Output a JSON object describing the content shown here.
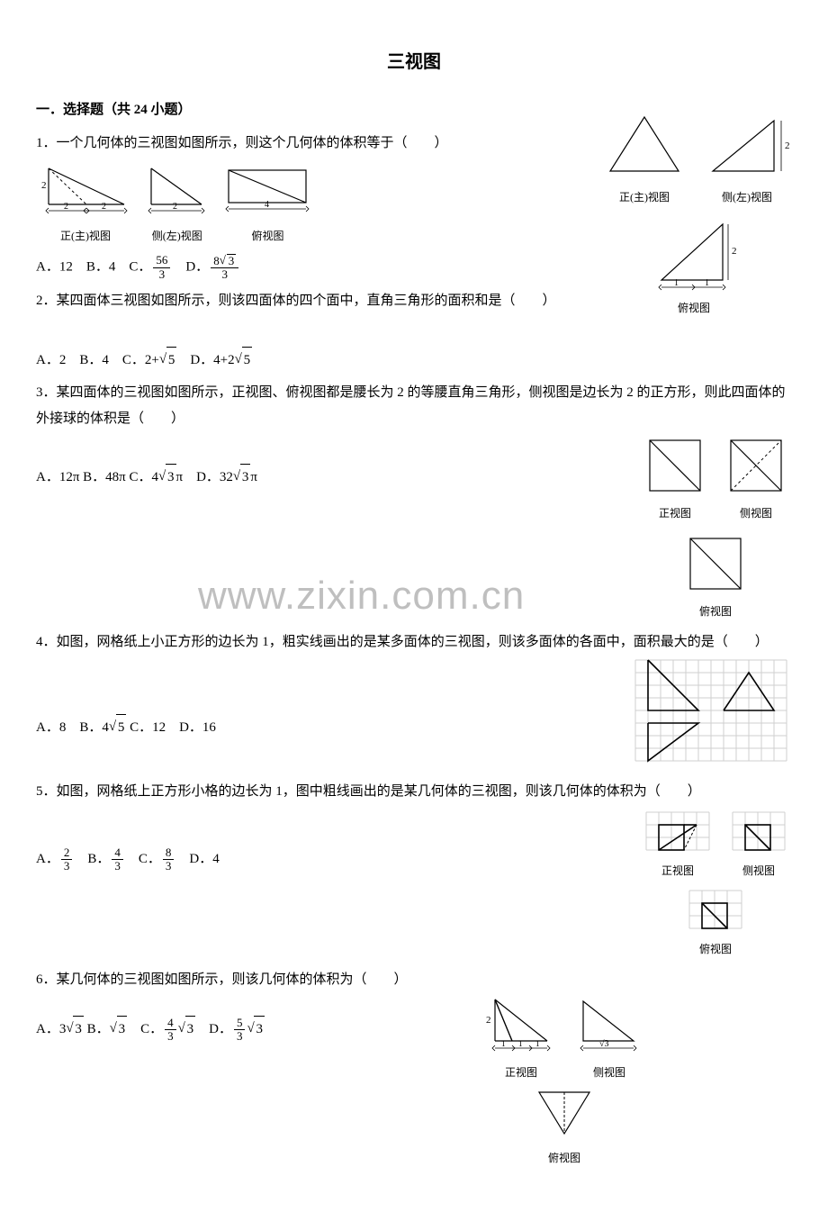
{
  "title": "三视图",
  "section_heading": "一．选择题（共 24 小题）",
  "watermark": "www.zixin.com.cn",
  "view_labels": {
    "front": "正(主)视图",
    "side": "侧(左)视图",
    "top": "俯视图",
    "front_short": "正视图",
    "side_short": "侧视图",
    "top_short": "俯视图",
    "front_tiny": "正视图",
    "side_tiny": "侧视图"
  },
  "questions": [
    {
      "num": "1",
      "text": "．一个几何体的三视图如图所示，则这个几何体的体积等于（　　）",
      "options_html": "A．12　B．4　C．<span class='frac'><span class='num'>56</span><span class='den'>3</span></span>　D．<span class='frac'><span class='num'>8<span class='sqrt'><span class='radicand'>3</span></span></span><span class='den'>3</span></span>"
    },
    {
      "num": "2",
      "text": "．某四面体三视图如图所示，则该四面体的四个面中，直角三角形的面积和是（　　）",
      "options_html": "A．2　B．4　C．2+<span class='sqrt'><span class='radicand'>5</span></span>　D．4+2<span class='sqrt'><span class='radicand'>5</span></span>"
    },
    {
      "num": "3",
      "text": "．某四面体的三视图如图所示，正视图、俯视图都是腰长为 2 的等腰直角三角形，侧视图是边长为 2 的正方形，则此四面体的外接球的体积是（　　）",
      "options_html": "A．12π B．48π C．4<span class='sqrt'><span class='radicand'>3</span></span>π　D．32<span class='sqrt'><span class='radicand'>3</span></span>π"
    },
    {
      "num": "4",
      "text": "．如图，网格纸上小正方形的边长为 1，粗实线画出的是某多面体的三视图，则该多面体的各面中，面积最大的是（　　）",
      "options_html": "A．8　B．4<span class='sqrt'><span class='radicand'>5</span></span> C．12　D．16"
    },
    {
      "num": "5",
      "text": "．如图，网格纸上正方形小格的边长为 1，图中粗线画出的是某几何体的三视图，则该几何体的体积为（　　）",
      "options_html": "A．<span class='frac'><span class='num'>2</span><span class='den'>3</span></span>　B．<span class='frac'><span class='num'>4</span><span class='den'>3</span></span>　C．<span class='frac'><span class='num'>8</span><span class='den'>3</span></span>　D．4"
    },
    {
      "num": "6",
      "text": "．某几何体的三视图如图所示，则该几何体的体积为（　　）",
      "options_html": "A．3<span class='sqrt'><span class='radicand'>3</span></span> B．<span class='sqrt'><span class='radicand'>3</span></span>　C．<span class='frac'><span class='num'>4</span><span class='den'>3</span></span><span class='sqrt'><span class='radicand'>3</span></span>　D．<span class='frac'><span class='num'>5</span><span class='den'>3</span></span><span class='sqrt'><span class='radicand'>3</span></span>"
    }
  ],
  "figures": {
    "colors": {
      "line": "#000000",
      "dash": "#000000",
      "grid": "#cfcfcf",
      "bg": "#ffffff"
    },
    "stroke_width": 1.2
  }
}
